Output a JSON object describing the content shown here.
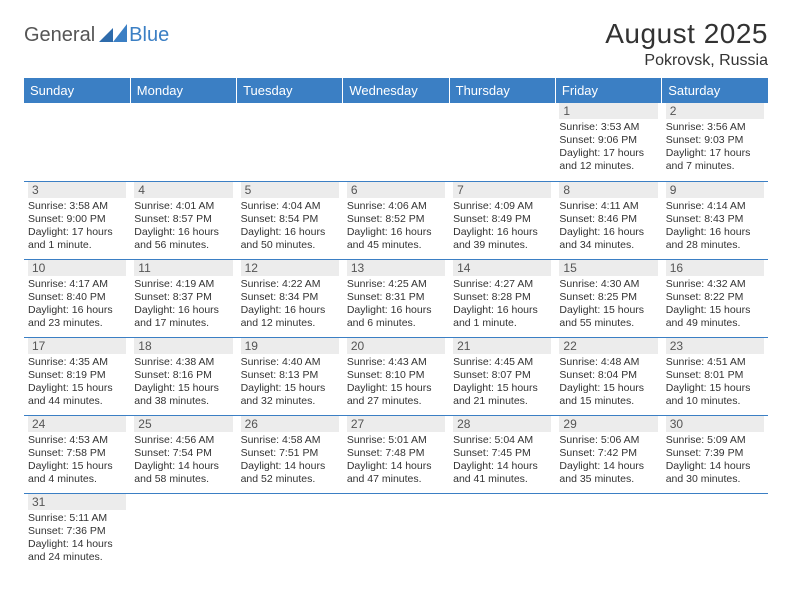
{
  "logo": {
    "part1": "General",
    "part2": "Blue"
  },
  "title": "August 2025",
  "location": "Pokrovsk, Russia",
  "colors": {
    "header_bg": "#3b7fc4",
    "header_text": "#ffffff",
    "daynum_bg": "#ececec",
    "border": "#3b7fc4",
    "text": "#333333",
    "logo_gray": "#555555",
    "logo_blue": "#3b7fc4"
  },
  "dayHeaders": [
    "Sunday",
    "Monday",
    "Tuesday",
    "Wednesday",
    "Thursday",
    "Friday",
    "Saturday"
  ],
  "weeks": [
    [
      null,
      null,
      null,
      null,
      null,
      {
        "n": "1",
        "sr": "Sunrise: 3:53 AM",
        "ss": "Sunset: 9:06 PM",
        "dl": "Daylight: 17 hours and 12 minutes."
      },
      {
        "n": "2",
        "sr": "Sunrise: 3:56 AM",
        "ss": "Sunset: 9:03 PM",
        "dl": "Daylight: 17 hours and 7 minutes."
      }
    ],
    [
      {
        "n": "3",
        "sr": "Sunrise: 3:58 AM",
        "ss": "Sunset: 9:00 PM",
        "dl": "Daylight: 17 hours and 1 minute."
      },
      {
        "n": "4",
        "sr": "Sunrise: 4:01 AM",
        "ss": "Sunset: 8:57 PM",
        "dl": "Daylight: 16 hours and 56 minutes."
      },
      {
        "n": "5",
        "sr": "Sunrise: 4:04 AM",
        "ss": "Sunset: 8:54 PM",
        "dl": "Daylight: 16 hours and 50 minutes."
      },
      {
        "n": "6",
        "sr": "Sunrise: 4:06 AM",
        "ss": "Sunset: 8:52 PM",
        "dl": "Daylight: 16 hours and 45 minutes."
      },
      {
        "n": "7",
        "sr": "Sunrise: 4:09 AM",
        "ss": "Sunset: 8:49 PM",
        "dl": "Daylight: 16 hours and 39 minutes."
      },
      {
        "n": "8",
        "sr": "Sunrise: 4:11 AM",
        "ss": "Sunset: 8:46 PM",
        "dl": "Daylight: 16 hours and 34 minutes."
      },
      {
        "n": "9",
        "sr": "Sunrise: 4:14 AM",
        "ss": "Sunset: 8:43 PM",
        "dl": "Daylight: 16 hours and 28 minutes."
      }
    ],
    [
      {
        "n": "10",
        "sr": "Sunrise: 4:17 AM",
        "ss": "Sunset: 8:40 PM",
        "dl": "Daylight: 16 hours and 23 minutes."
      },
      {
        "n": "11",
        "sr": "Sunrise: 4:19 AM",
        "ss": "Sunset: 8:37 PM",
        "dl": "Daylight: 16 hours and 17 minutes."
      },
      {
        "n": "12",
        "sr": "Sunrise: 4:22 AM",
        "ss": "Sunset: 8:34 PM",
        "dl": "Daylight: 16 hours and 12 minutes."
      },
      {
        "n": "13",
        "sr": "Sunrise: 4:25 AM",
        "ss": "Sunset: 8:31 PM",
        "dl": "Daylight: 16 hours and 6 minutes."
      },
      {
        "n": "14",
        "sr": "Sunrise: 4:27 AM",
        "ss": "Sunset: 8:28 PM",
        "dl": "Daylight: 16 hours and 1 minute."
      },
      {
        "n": "15",
        "sr": "Sunrise: 4:30 AM",
        "ss": "Sunset: 8:25 PM",
        "dl": "Daylight: 15 hours and 55 minutes."
      },
      {
        "n": "16",
        "sr": "Sunrise: 4:32 AM",
        "ss": "Sunset: 8:22 PM",
        "dl": "Daylight: 15 hours and 49 minutes."
      }
    ],
    [
      {
        "n": "17",
        "sr": "Sunrise: 4:35 AM",
        "ss": "Sunset: 8:19 PM",
        "dl": "Daylight: 15 hours and 44 minutes."
      },
      {
        "n": "18",
        "sr": "Sunrise: 4:38 AM",
        "ss": "Sunset: 8:16 PM",
        "dl": "Daylight: 15 hours and 38 minutes."
      },
      {
        "n": "19",
        "sr": "Sunrise: 4:40 AM",
        "ss": "Sunset: 8:13 PM",
        "dl": "Daylight: 15 hours and 32 minutes."
      },
      {
        "n": "20",
        "sr": "Sunrise: 4:43 AM",
        "ss": "Sunset: 8:10 PM",
        "dl": "Daylight: 15 hours and 27 minutes."
      },
      {
        "n": "21",
        "sr": "Sunrise: 4:45 AM",
        "ss": "Sunset: 8:07 PM",
        "dl": "Daylight: 15 hours and 21 minutes."
      },
      {
        "n": "22",
        "sr": "Sunrise: 4:48 AM",
        "ss": "Sunset: 8:04 PM",
        "dl": "Daylight: 15 hours and 15 minutes."
      },
      {
        "n": "23",
        "sr": "Sunrise: 4:51 AM",
        "ss": "Sunset: 8:01 PM",
        "dl": "Daylight: 15 hours and 10 minutes."
      }
    ],
    [
      {
        "n": "24",
        "sr": "Sunrise: 4:53 AM",
        "ss": "Sunset: 7:58 PM",
        "dl": "Daylight: 15 hours and 4 minutes."
      },
      {
        "n": "25",
        "sr": "Sunrise: 4:56 AM",
        "ss": "Sunset: 7:54 PM",
        "dl": "Daylight: 14 hours and 58 minutes."
      },
      {
        "n": "26",
        "sr": "Sunrise: 4:58 AM",
        "ss": "Sunset: 7:51 PM",
        "dl": "Daylight: 14 hours and 52 minutes."
      },
      {
        "n": "27",
        "sr": "Sunrise: 5:01 AM",
        "ss": "Sunset: 7:48 PM",
        "dl": "Daylight: 14 hours and 47 minutes."
      },
      {
        "n": "28",
        "sr": "Sunrise: 5:04 AM",
        "ss": "Sunset: 7:45 PM",
        "dl": "Daylight: 14 hours and 41 minutes."
      },
      {
        "n": "29",
        "sr": "Sunrise: 5:06 AM",
        "ss": "Sunset: 7:42 PM",
        "dl": "Daylight: 14 hours and 35 minutes."
      },
      {
        "n": "30",
        "sr": "Sunrise: 5:09 AM",
        "ss": "Sunset: 7:39 PM",
        "dl": "Daylight: 14 hours and 30 minutes."
      }
    ],
    [
      {
        "n": "31",
        "sr": "Sunrise: 5:11 AM",
        "ss": "Sunset: 7:36 PM",
        "dl": "Daylight: 14 hours and 24 minutes."
      },
      null,
      null,
      null,
      null,
      null,
      null
    ]
  ]
}
